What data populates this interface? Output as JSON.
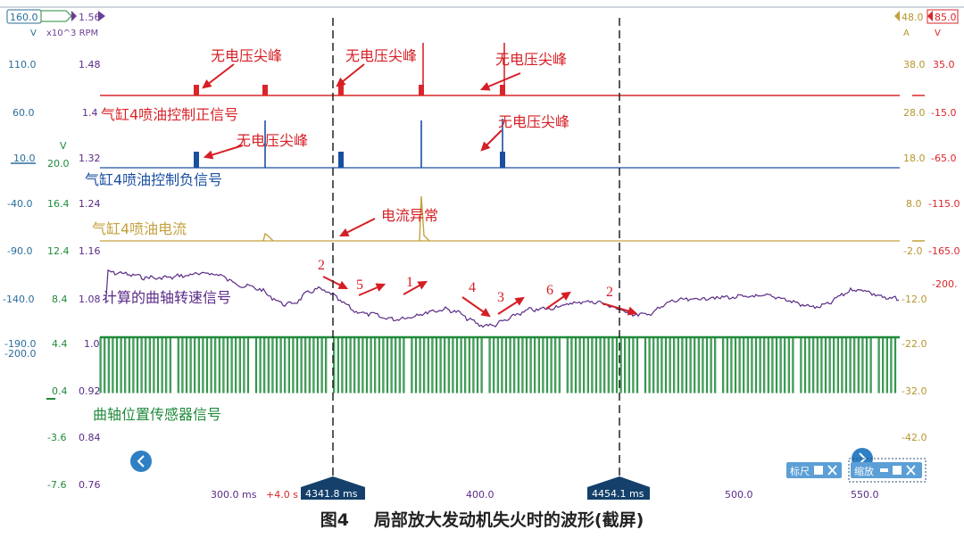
{
  "caption": {
    "fig": "图4",
    "title": "局部放大发动机失火时的波形(截屏)"
  },
  "colors": {
    "red": "#d9262b",
    "blue": "#1a4fa0",
    "gold": "#c4a13e",
    "purple": "#5a2a86",
    "green": "#1f8a3a",
    "teal": "#2a6d9a",
    "navy": "#14406b",
    "annot": "#d51f25"
  },
  "scales": {
    "top_labels": [
      "160.0",
      "1.56",
      "48.0",
      "85.0"
    ],
    "unit_labels": [
      "V",
      "x10^3 RPM",
      "A",
      "V"
    ],
    "v_axis": [
      "110.0",
      "60.0",
      "10.0",
      "-40.0",
      "-90.0",
      "-140.0",
      "-190.0",
      "-200.0",
      "-3.6",
      "-7.6"
    ],
    "blue_v": [
      "V",
      "20.0",
      "16.4",
      "12.4",
      "8.4",
      "4.4"
    ],
    "rpm_axis": [
      "1.48",
      "1.4",
      "1.32",
      "1.24",
      "1.16",
      "1.08",
      "1.0",
      "0.92",
      "0.84",
      "0.76"
    ],
    "green_zero": "0.4",
    "amp_axis": [
      "38.0",
      "28.0",
      "18.0",
      "8.0",
      "-2.0",
      "-12.0",
      "-22.0",
      "-32.0",
      "-42.0"
    ],
    "right_v": [
      "35.0",
      "-15.0",
      "-65.0",
      "-115.0",
      "-165.0",
      "-200."
    ],
    "low_left": "10.0"
  },
  "time_axis": {
    "ticks": [
      "300.0 ms",
      "400.0",
      "500.0",
      "550.0"
    ],
    "offset": "+4.0 s",
    "cursor1": "4341.8 ms",
    "cursor2": "4454.1 ms"
  },
  "buttons": {
    "ruler": "标尺",
    "zoom": "缩放"
  },
  "chart_data": {
    "type": "line",
    "x_unit": "ms",
    "series": [
      {
        "name": "气缸4喷油控制正信号",
        "pulses": [
          [
            220,
            "small"
          ],
          [
            297,
            "small"
          ],
          [
            382,
            "small"
          ],
          [
            472,
            "tall"
          ],
          [
            563,
            "tall"
          ]
        ]
      },
      {
        "name": "气缸4喷油控制负信号",
        "pulses": [
          [
            220,
            "small"
          ],
          [
            297,
            "spike"
          ],
          [
            382,
            "small"
          ],
          [
            472,
            "spike"
          ],
          [
            563,
            "tall"
          ]
        ]
      },
      {
        "name": "气缸4喷油电流",
        "pulses": [
          [
            297,
            "small"
          ],
          [
            472,
            "tall"
          ]
        ]
      },
      {
        "name": "计算的曲轴转速信号",
        "trend": [
          [
            120,
            1.0
          ],
          [
            175,
            0.78
          ],
          [
            235,
            0.95
          ],
          [
            280,
            0.45
          ],
          [
            323,
            -0.2
          ],
          [
            355,
            0.35
          ],
          [
            410,
            -0.55
          ],
          [
            440,
            -0.75
          ],
          [
            500,
            -0.4
          ],
          [
            545,
            -1.0
          ],
          [
            600,
            -0.4
          ],
          [
            660,
            -0.1
          ],
          [
            720,
            -0.6
          ],
          [
            760,
            -0.05
          ],
          [
            805,
            0.05
          ],
          [
            860,
            0.1
          ],
          [
            915,
            -0.3
          ],
          [
            960,
            0.35
          ],
          [
            1000,
            0.0
          ]
        ]
      },
      {
        "name": "曲轴位置传感器信号",
        "teeth": "regular"
      }
    ],
    "annotations": [
      "无电压尖峰",
      "无电压尖峰",
      "无电压尖峰",
      "无电压尖峰",
      "无电压尖峰",
      "电流异常"
    ],
    "sequence_labels": [
      "2",
      "5",
      "1",
      "4",
      "3",
      "6",
      "2"
    ]
  }
}
